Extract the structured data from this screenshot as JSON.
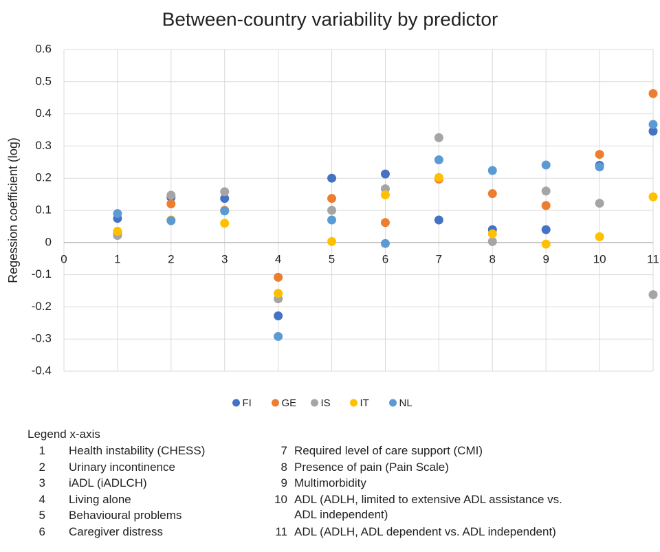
{
  "chart_data": {
    "type": "scatter",
    "title": "Between-country variability by predictor",
    "y_label": "Regession coefficient (log)",
    "x": [
      1,
      2,
      3,
      4,
      5,
      6,
      7,
      8,
      9,
      10,
      11
    ],
    "series": [
      {
        "name": "FI",
        "color": "#4472c4",
        "values": [
          0.075,
          0.14,
          0.137,
          -0.228,
          0.2,
          0.213,
          0.07,
          0.04,
          0.04,
          0.24,
          0.346
        ]
      },
      {
        "name": "GE",
        "color": "#ed7d31",
        "values": [
          0.03,
          0.12,
          0.1,
          -0.108,
          0.137,
          0.062,
          0.197,
          0.152,
          0.115,
          0.274,
          0.463
        ]
      },
      {
        "name": "IS",
        "color": "#a5a5a5",
        "values": [
          0.022,
          0.147,
          0.158,
          -0.175,
          0.1,
          0.167,
          0.326,
          0.003,
          0.16,
          0.122,
          -0.162
        ]
      },
      {
        "name": "IT",
        "color": "#ffc000",
        "values": [
          0.035,
          0.07,
          0.06,
          -0.158,
          0.003,
          0.148,
          0.202,
          0.027,
          -0.005,
          0.018,
          0.142
        ]
      },
      {
        "name": "NL",
        "color": "#5b9bd5",
        "values": [
          0.09,
          0.068,
          0.098,
          -0.292,
          0.07,
          -0.003,
          0.257,
          0.224,
          0.241,
          0.235,
          0.367
        ]
      }
    ],
    "xlim": [
      0,
      11
    ],
    "xticks": [
      0,
      1,
      2,
      3,
      4,
      5,
      6,
      7,
      8,
      9,
      10,
      11
    ],
    "ylim": [
      -0.4,
      0.6
    ],
    "yticks": [
      -0.4,
      -0.3,
      -0.2,
      -0.1,
      0,
      0.1,
      0.2,
      0.3,
      0.4,
      0.5,
      0.6
    ],
    "grid": true,
    "legend": "bottom"
  },
  "legend_x_axis": {
    "title": "Legend x-axis",
    "items": [
      {
        "number": "1",
        "label": "Health instability (CHESS)"
      },
      {
        "number": "2",
        "label": "Urinary incontinence"
      },
      {
        "number": "3",
        "label": "iADL (iADLCH)"
      },
      {
        "number": "4",
        "label": "Living alone"
      },
      {
        "number": "5",
        "label": "Behavioural problems"
      },
      {
        "number": "6",
        "label": "Caregiver distress"
      },
      {
        "number": "7",
        "label": "Required level of care support (CMI)"
      },
      {
        "number": "8",
        "label": "Presence of pain (Pain Scale)"
      },
      {
        "number": "9",
        "label": "Multimorbidity"
      },
      {
        "number": "10",
        "label": "ADL (ADLH, limited to extensive ADL assistance vs. ADL independent)"
      },
      {
        "number": "11",
        "label": "ADL (ADLH, ADL dependent vs. ADL independent)"
      }
    ]
  }
}
